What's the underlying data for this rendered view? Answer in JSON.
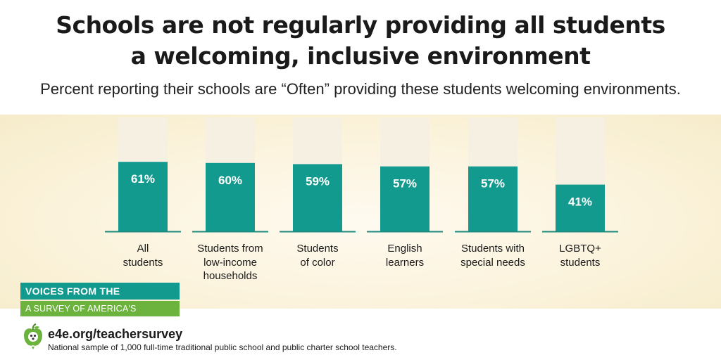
{
  "header": {
    "title_line1": "Schools are not regularly providing all students",
    "title_line2": "a welcoming, inclusive environment",
    "subtitle": "Percent reporting their schools are “Often” providing these students welcoming environments."
  },
  "chart_data": {
    "type": "bar",
    "categories": [
      "All\nstudents",
      "Students from\nlow-income\nhouseholds",
      "Students\nof color",
      "English\nlearners",
      "Students with\nspecial needs",
      "LGBTQ+\nstudents"
    ],
    "values": [
      61,
      60,
      59,
      57,
      57,
      41
    ],
    "value_labels": [
      "61%",
      "60%",
      "59%",
      "57%",
      "57%",
      "41%"
    ],
    "ylim": [
      0,
      100
    ],
    "colors": {
      "bar": "#139a8f",
      "track": "#f5f0e1",
      "baseline": "#1f8a82",
      "value_text": "#ffffff"
    }
  },
  "badge": {
    "line1": "VOICES FROM THE CLASSROOM",
    "line2": "A SURVEY OF AMERICA'S EDUCATORS"
  },
  "footer": {
    "url": "e4e.org/teachersurvey",
    "note": "National sample of 1,000 full-time traditional public school and public charter school teachers."
  },
  "logo_icon": "apple-icon"
}
